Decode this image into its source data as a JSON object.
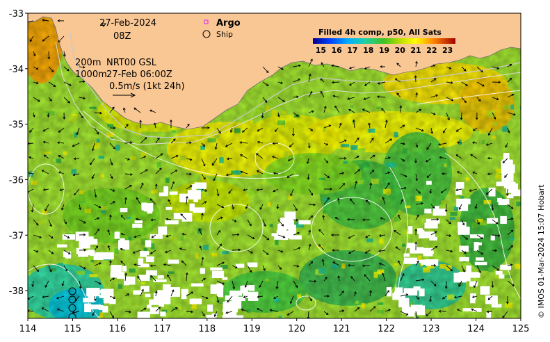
{
  "map": {
    "date_label": "27-Feb-2024",
    "time_label": "08Z",
    "legend_argo": "Argo",
    "legend_ship": "Ship",
    "depth_200": "200m",
    "depth_1000": "1000m",
    "source_line1": "NRT00 GSL",
    "source_line2": "27-Feb 06:00Z",
    "velocity_scale": "0.5m/s (1kt 24h)",
    "colorbar_title": "Filled 4h comp, p50, All Sats",
    "credit": "© IMOS 01-Mar-2024 15:07 Hobart",
    "land_color": "#f9c794",
    "argo_color": "#e040e0"
  },
  "chart_data": {
    "type": "heatmap",
    "title": "Filled 4h comp, p50, All Sats",
    "x_ticks": [
      "114",
      "115",
      "116",
      "117",
      "118",
      "119",
      "120",
      "121",
      "122",
      "123",
      "124",
      "125"
    ],
    "y_ticks": [
      "-33",
      "-34",
      "-35",
      "-36",
      "-37",
      "-38"
    ],
    "xlim": [
      114,
      125
    ],
    "ylim": [
      -38.5,
      -33
    ],
    "colorbar_ticks": [
      "15",
      "16",
      "17",
      "18",
      "19",
      "20",
      "21",
      "22",
      "23"
    ],
    "colorbar_range": [
      14.5,
      23.5
    ]
  }
}
